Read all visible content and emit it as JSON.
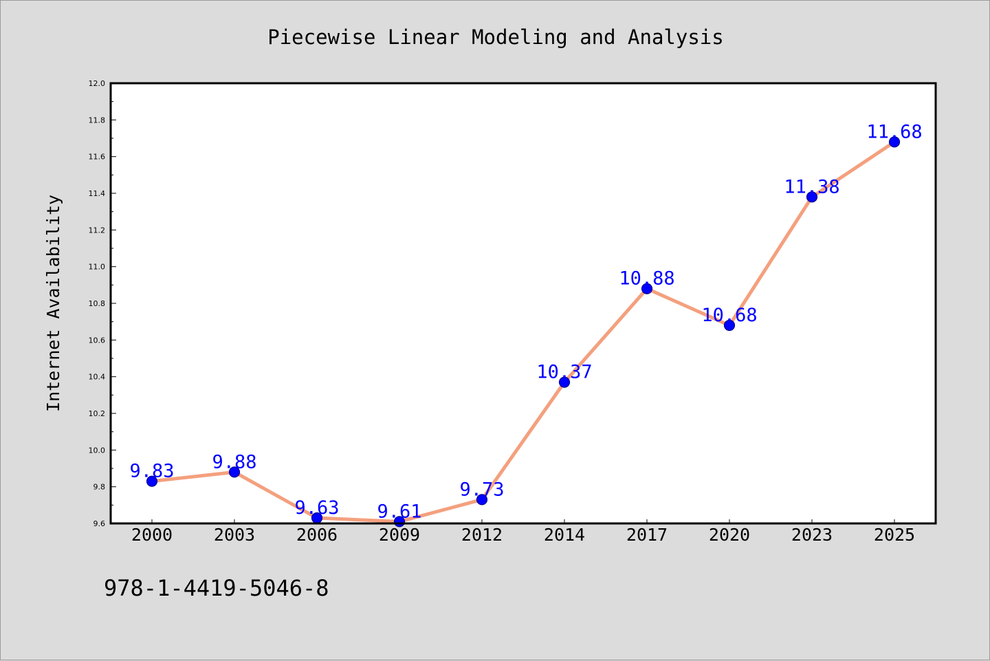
{
  "chart_data": {
    "type": "line",
    "title": "Piecewise Linear Modeling and Analysis",
    "xlabel": "",
    "ylabel": "Internet Availability",
    "categories": [
      "2000",
      "2003",
      "2006",
      "2009",
      "2012",
      "2014",
      "2017",
      "2020",
      "2023",
      "2025"
    ],
    "series": [
      {
        "values": [
          9.83,
          9.88,
          9.63,
          9.61,
          9.73,
          10.37,
          10.88,
          10.68,
          11.38,
          11.68
        ],
        "labels": [
          "9.83",
          "9.88",
          "9.63",
          "9.61",
          "9.73",
          "10.37",
          "10.88",
          "10.68",
          "11.38",
          "11.68"
        ]
      }
    ],
    "ylim": [
      9.6,
      12.0
    ],
    "yticks": [
      "9.6",
      "9.8",
      "10.0",
      "10.2",
      "10.4",
      "10.6",
      "10.8",
      "11.0",
      "11.2",
      "11.4",
      "11.6",
      "11.8",
      "12.0"
    ],
    "grid": false,
    "legend": "none",
    "colors": {
      "line": "#f4a07e",
      "marker": "#0000ff",
      "marker_edge": "#00008b",
      "data_label": "#0000ff",
      "plot_background": "#ffffff",
      "figure_background": "#dcdcdc"
    }
  },
  "footer": {
    "isbn": "978-1-4419-5046-8"
  }
}
